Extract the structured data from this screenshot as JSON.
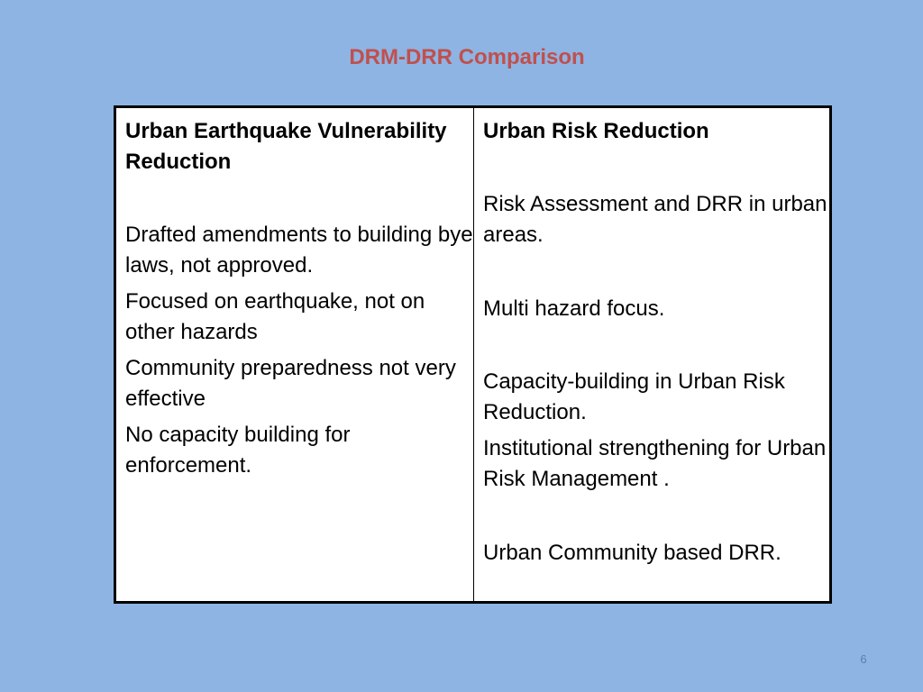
{
  "slide": {
    "title": "DRM-DRR Comparison",
    "page_number": "6"
  },
  "table": {
    "left": {
      "heading": "Urban Earthquake Vulnerability Reduction",
      "items": [
        "Drafted amendments to building bye laws, not approved.",
        "Focused on earthquake, not on other hazards",
        "Community preparedness not very effective",
        "No capacity building for enforcement."
      ]
    },
    "right": {
      "heading": "Urban Risk Reduction",
      "items": [
        "Risk Assessment and DRR in urban areas.",
        "Multi hazard focus.",
        "Capacity-building in Urban Risk Reduction.",
        "Institutional strengthening for Urban Risk Management .",
        "Urban Community based DRR."
      ]
    }
  },
  "colors": {
    "background": "#8eb4e3",
    "title": "#c0504d",
    "table_background": "#ffffff",
    "border": "#000000"
  }
}
